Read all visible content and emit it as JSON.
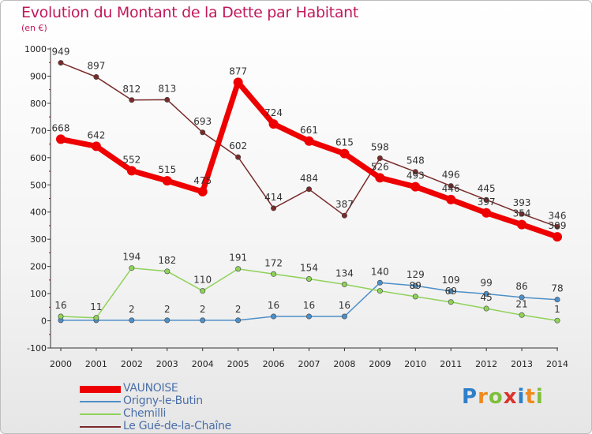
{
  "header": {
    "title": "Evolution du Montant de la Dette par Habitant",
    "subtitle": "(en €)"
  },
  "brand": {
    "text": "Proxiti",
    "letter_colors": [
      "#2e7fc9",
      "#f08a1c",
      "#7fbf3a",
      "#d9342b",
      "#2e7fc9",
      "#f08a1c",
      "#7fbf3a"
    ]
  },
  "chart_data": {
    "type": "line",
    "title": "Evolution du Montant de la Dette par Habitant",
    "subtitle": "(en €)",
    "x": [
      "2000",
      "2001",
      "2002",
      "2003",
      "2004",
      "2005",
      "2006",
      "2007",
      "2008",
      "2009",
      "2010",
      "2011",
      "2012",
      "2013",
      "2014"
    ],
    "ylim": [
      -100,
      1000
    ],
    "yticks": [
      "-100",
      "0",
      "100",
      "200",
      "300",
      "400",
      "500",
      "600",
      "700",
      "800",
      "900",
      "1000"
    ],
    "grid": false,
    "legend_position": "bottom-left",
    "series": [
      {
        "name": "VAUNOISE",
        "color": "#ee0000",
        "values": [
          668,
          642,
          552,
          515,
          475,
          877,
          724,
          661,
          615,
          526,
          493,
          446,
          397,
          354,
          309
        ],
        "labels": [
          "668",
          "642",
          "552",
          "515",
          "475",
          "877",
          "724",
          "661",
          "615",
          "526",
          "493",
          "446",
          "397",
          "354",
          "309"
        ]
      },
      {
        "name": "Origny-le-Butin",
        "color": "#4d8fc8",
        "values": [
          2,
          2,
          2,
          2,
          2,
          2,
          16,
          16,
          16,
          140,
          129,
          109,
          99,
          86,
          78
        ],
        "labels": [
          "",
          "",
          "2",
          "2",
          "2",
          "2",
          "16",
          "16",
          "16",
          "140",
          "129",
          "109",
          "99",
          "86",
          "78"
        ]
      },
      {
        "name": "Chemilli",
        "color": "#8fd25a",
        "values": [
          16,
          11,
          194,
          182,
          110,
          191,
          172,
          154,
          134,
          110,
          89,
          69,
          45,
          21,
          1
        ],
        "labels": [
          "16",
          "11",
          "194",
          "182",
          "110",
          "191",
          "172",
          "154",
          "134",
          "",
          "89",
          "69",
          "45",
          "21",
          "1"
        ]
      },
      {
        "name": "Le Gué-de-la-Chaîne",
        "color": "#7a2a2a",
        "values": [
          949,
          897,
          812,
          813,
          693,
          602,
          414,
          484,
          387,
          598,
          548,
          496,
          445,
          393,
          346
        ],
        "labels": [
          "949",
          "897",
          "812",
          "813",
          "693",
          "602",
          "414",
          "484",
          "387",
          "598",
          "548",
          "496",
          "445",
          "393",
          "346"
        ]
      }
    ]
  }
}
